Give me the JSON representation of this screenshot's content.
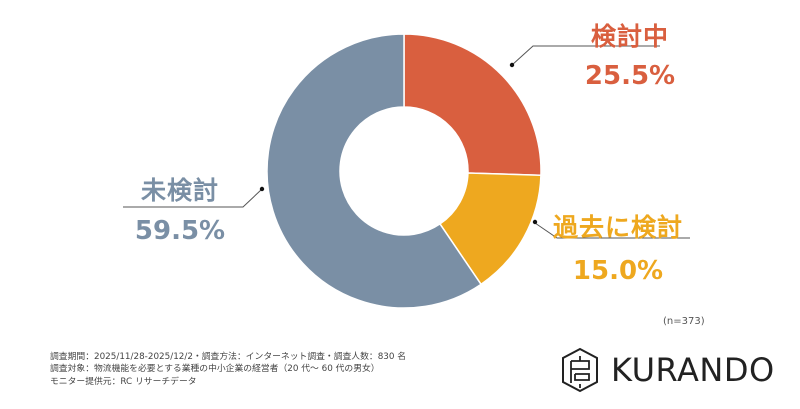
{
  "chart_data": {
    "type": "pie",
    "variant": "donut",
    "title": "",
    "categories": [
      "検討中",
      "過去に検討",
      "未検討"
    ],
    "values": [
      25.5,
      15.0,
      59.5
    ],
    "value_labels": [
      "25.5%",
      "15.0%",
      "59.5%"
    ],
    "colors": [
      "#d95f3f",
      "#eea81f",
      "#7a8fa5"
    ],
    "start_angle_deg": 0,
    "direction": "clockwise",
    "sample_size": "(n=373)"
  },
  "labels": {
    "kentouchu": {
      "category": "検討中",
      "percent": "25.5%"
    },
    "kako": {
      "category": "過去に検討",
      "percent": "15.0%"
    },
    "mi": {
      "category": "未検討",
      "percent": "59.5%"
    }
  },
  "n_note": "(n=373)",
  "footnote": {
    "line1": "調査期間：2025/11/28-2025/12/2・調査方法：インターネット調査・調査人数：830 名",
    "line2": "調査対象：物流機能を必要とする業種の中小企業の経営者（20 代～ 60 代の男女）",
    "line3": "モニター提供元：RC リサーチデータ"
  },
  "logo": {
    "text": "KURANDO",
    "icon": "kurando-hexagon-logo-icon"
  }
}
